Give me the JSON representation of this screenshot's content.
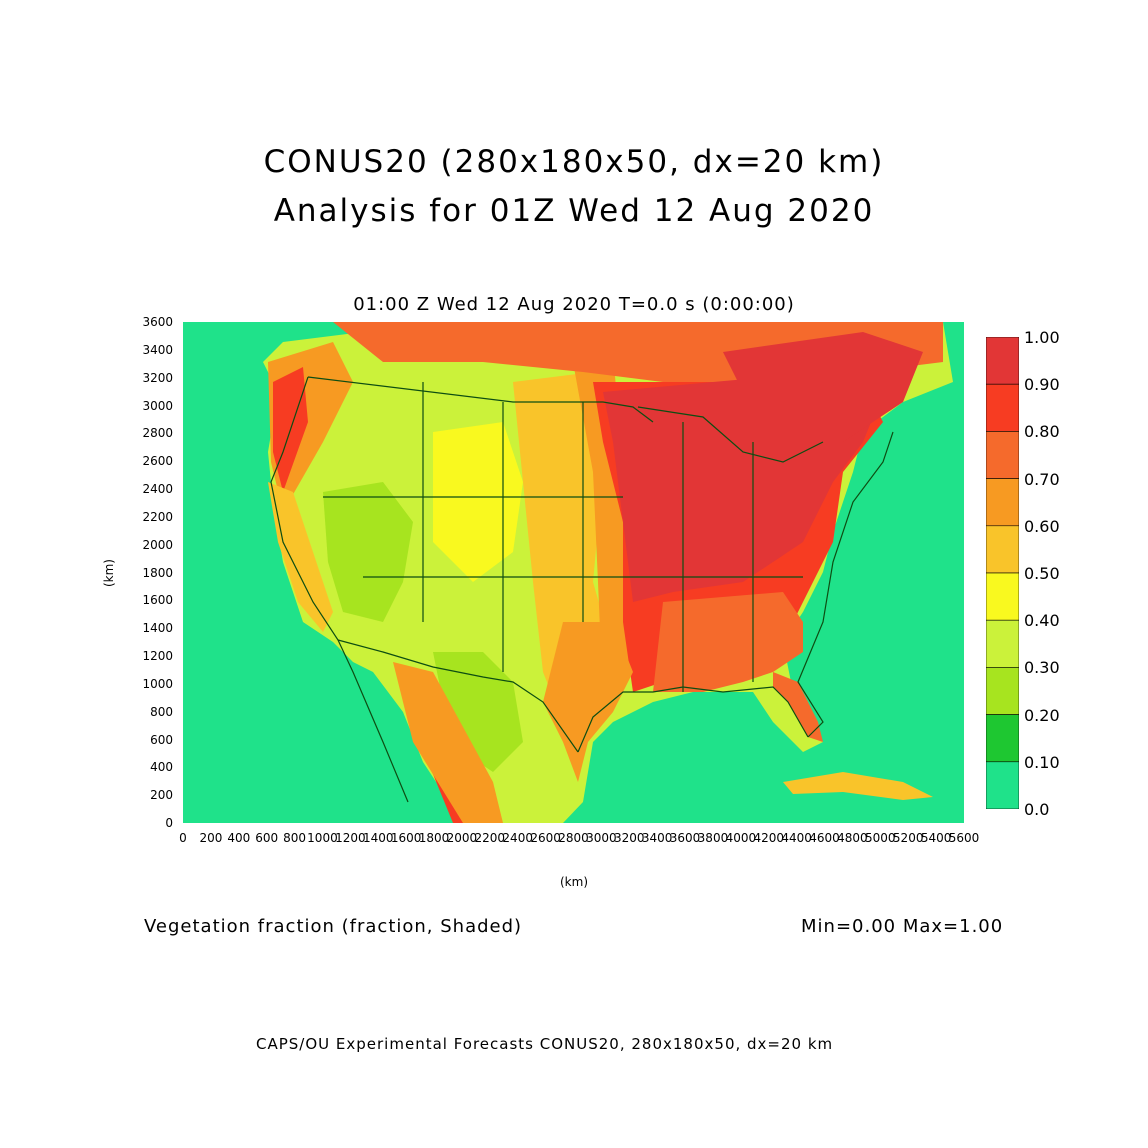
{
  "header": {
    "title_line1": "CONUS20 (280x180x50, dx=20 km)",
    "title_line2": "Analysis for 01Z Wed 12 Aug 2020",
    "plot_title": "01:00 Z Wed 12 Aug 2020    T=0.0 s (0:00:00)"
  },
  "axes": {
    "y_label": "(km)",
    "x_label": "(km)",
    "y_ticks": [
      "3600",
      "3400",
      "3200",
      "3000",
      "2800",
      "2600",
      "2400",
      "2200",
      "2000",
      "1800",
      "1600",
      "1400",
      "1200",
      "1000",
      "800",
      "600",
      "400",
      "200",
      "0"
    ],
    "x_ticks": [
      "0",
      "200",
      "400",
      "600",
      "800",
      "1000",
      "1200",
      "1400",
      "1600",
      "1800",
      "2000",
      "2200",
      "2400",
      "2600",
      "2800",
      "3000",
      "3200",
      "3400",
      "3600",
      "3800",
      "4000",
      "4200",
      "4400",
      "4600",
      "4800",
      "5000",
      "5200",
      "5400",
      "5600"
    ]
  },
  "legend": {
    "labels": [
      "1.00",
      "0.90",
      "0.80",
      "0.70",
      "0.60",
      "0.50",
      "0.40",
      "0.30",
      "0.20",
      "0.10",
      "0.0"
    ],
    "colors": [
      "#e23636",
      "#f73c22",
      "#f56a2c",
      "#f79a22",
      "#f9c42a",
      "#f9f91f",
      "#cbf23a",
      "#a7e41f",
      "#1ec731",
      "#1fe28a"
    ]
  },
  "field": {
    "variable": "Vegetation fraction (fraction, Shaded)",
    "minmax": "Min=0.00  Max=1.00"
  },
  "footer": {
    "credit": "CAPS/OU Experimental Forecasts  CONUS20, 280x180x50, dx=20 km"
  },
  "map": {
    "background_color": "#1fe28a",
    "border_color": "#0d4d12"
  }
}
